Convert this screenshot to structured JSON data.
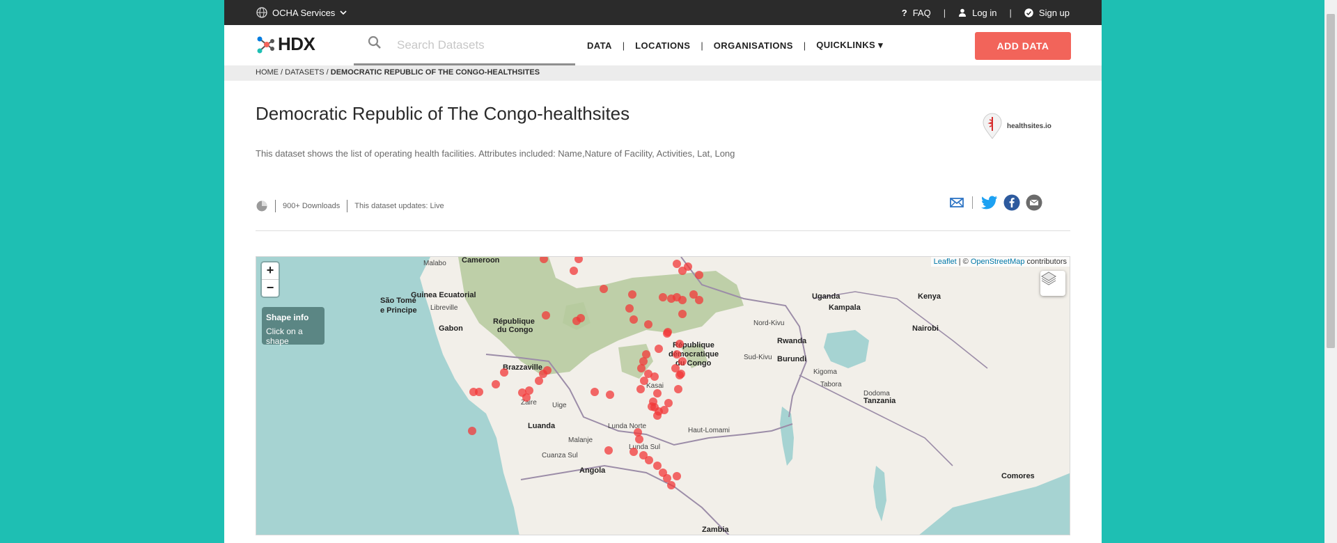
{
  "topbar": {
    "org_label": "OCHA Services",
    "faq_label": "FAQ",
    "login_label": "Log in",
    "signup_label": "Sign up",
    "separator": "|"
  },
  "header": {
    "logo_text": "HDX",
    "search_placeholder": "Search Datasets",
    "nav": [
      "DATA",
      "LOCATIONS",
      "ORGANISATIONS",
      "QUICKLINKS ▾"
    ],
    "nav_separator": "|",
    "add_data_label": "ADD DATA"
  },
  "breadcrumb": {
    "items": [
      "HOME",
      "DATASETS"
    ],
    "separator": " / ",
    "current": "DEMOCRATIC REPUBLIC OF THE CONGO-HEALTHSITES"
  },
  "dataset": {
    "title": "Democratic Republic of The Congo-healthsites",
    "description": "This dataset shows the list of operating health facilities. Attributes included: Name,Nature of Facility, Activities, Lat, Long",
    "org_name": "healthsites.io",
    "downloads": "900+ Downloads",
    "update_frequency": "This dataset updates: Live"
  },
  "map": {
    "zoom_in": "+",
    "zoom_out": "−",
    "shape_info_title": "Shape info",
    "shape_info_hint": "Click on a shape",
    "attribution_leaflet": "Leaflet",
    "attribution_mid": " | © ",
    "attribution_osm": "OpenStreetMap",
    "attribution_end": " contributors",
    "place_labels": [
      "Malabo",
      "Cameroon",
      "São Tomé",
      "e Principe",
      "Guinea Ecuatorial",
      "Libreville",
      "Gabon",
      "République",
      "du Congo",
      "Brazzaville",
      "République",
      "démocratique",
      "du Congo",
      "Uganda",
      "Kampala",
      "Kenya",
      "Nairobi",
      "Rwanda",
      "Burundi",
      "Tanzania",
      "Luanda",
      "Angola",
      "Zambia",
      "Comores",
      "Lunda Norte",
      "Lunda Sul",
      "Malanje",
      "Cuanza Sul",
      "Haut-Lomami",
      "Kasai",
      "Uige",
      "Zaire",
      "Sud-Kivu",
      "Nord-Kivu",
      "Kigoma",
      "Tabora",
      "Dodoma"
    ],
    "colors": {
      "water": "#a6d3d2",
      "land": "#f2efe9",
      "forest": "#b5c99c",
      "marker": "#f23838",
      "accent": "#f2645a"
    }
  }
}
